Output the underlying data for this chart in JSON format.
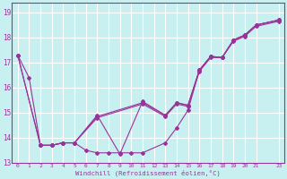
{
  "xlabel": "Windchill (Refroidissement éolien,°C)",
  "background_color": "#c8f0f0",
  "grid_color": "#ffffff",
  "line_color": "#993399",
  "xlim": [
    -0.5,
    23.5
  ],
  "ylim": [
    13.0,
    19.4
  ],
  "yticks": [
    13,
    14,
    15,
    16,
    17,
    18,
    19
  ],
  "xtick_positions": [
    0,
    1,
    2,
    3,
    4,
    5,
    6,
    7,
    8,
    9,
    10,
    11,
    12,
    13,
    14,
    15,
    16,
    17,
    18,
    19,
    20,
    21,
    23
  ],
  "xtick_labels": [
    "0",
    "1",
    "2",
    "3",
    "4",
    "5",
    "6",
    "7",
    "8",
    "9",
    "10",
    "11",
    "12",
    "13",
    "14",
    "15",
    "16",
    "17",
    "18",
    "19",
    "20",
    "21",
    "23"
  ],
  "series": [
    {
      "x": [
        0,
        1,
        2,
        3,
        4,
        5,
        6,
        7,
        8,
        9,
        10,
        11,
        13,
        14,
        15,
        16,
        17,
        18,
        19,
        20,
        21,
        23
      ],
      "y": [
        17.3,
        16.4,
        13.7,
        13.7,
        13.8,
        13.8,
        13.5,
        13.4,
        13.4,
        13.4,
        13.4,
        13.4,
        13.8,
        14.4,
        15.1,
        16.7,
        17.25,
        17.2,
        17.9,
        18.1,
        18.5,
        18.7
      ]
    },
    {
      "x": [
        0,
        2,
        3,
        4,
        5,
        7,
        11,
        13,
        14,
        15,
        16,
        17,
        18,
        19,
        20,
        21,
        23
      ],
      "y": [
        17.3,
        13.7,
        13.7,
        13.8,
        13.8,
        14.8,
        15.35,
        14.85,
        15.35,
        15.25,
        16.65,
        17.2,
        17.2,
        17.85,
        18.05,
        18.45,
        18.65
      ]
    },
    {
      "x": [
        0,
        2,
        3,
        4,
        5,
        7,
        9,
        11,
        13,
        14,
        15,
        16,
        17,
        18,
        19,
        20,
        21,
        23
      ],
      "y": [
        17.3,
        13.7,
        13.7,
        13.8,
        13.8,
        14.9,
        13.35,
        15.45,
        14.9,
        15.4,
        15.3,
        16.7,
        17.25,
        17.2,
        17.9,
        18.1,
        18.5,
        18.7
      ]
    },
    {
      "x": [
        2,
        3,
        4,
        5,
        7,
        11,
        13,
        14,
        15,
        16,
        17,
        18,
        19,
        20,
        21,
        23
      ],
      "y": [
        13.7,
        13.7,
        13.8,
        13.8,
        14.85,
        15.4,
        14.9,
        15.4,
        15.3,
        16.7,
        17.25,
        17.2,
        17.9,
        18.1,
        18.5,
        18.7
      ]
    }
  ]
}
